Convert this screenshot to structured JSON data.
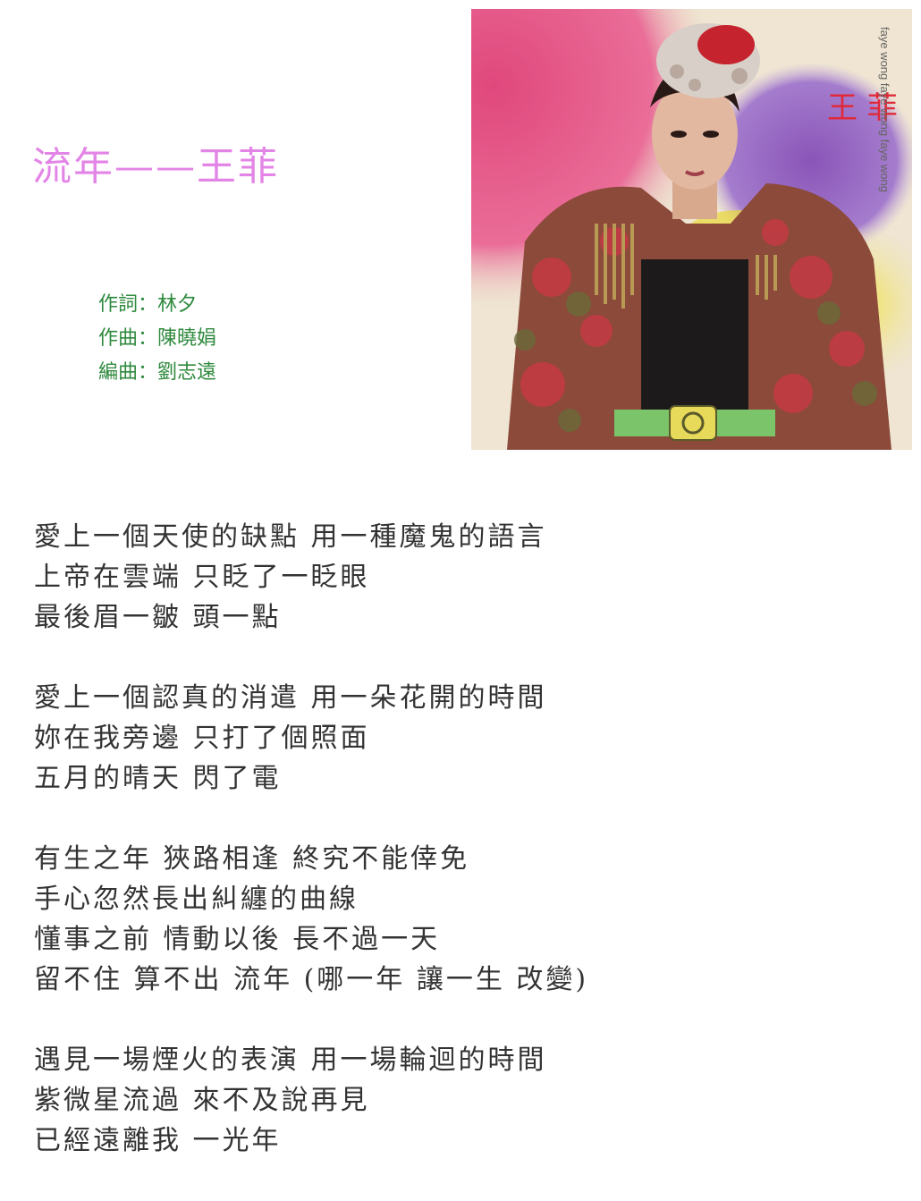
{
  "title": "流年——王菲",
  "credits": [
    "作詞：林夕",
    "作曲：陳曉娟",
    "編曲：劉志遠"
  ],
  "cover": {
    "artist_zh": "王 菲",
    "artist_en": "faye wong faye wong faye wong"
  },
  "stanzas": [
    [
      "愛上一個天使的缺點 用一種魔鬼的語言",
      "上帝在雲端 只眨了一眨眼",
      "最後眉一皺 頭一點"
    ],
    [
      "愛上一個認真的消遣 用一朵花開的時間",
      "妳在我旁邊 只打了個照面",
      "五月的晴天 閃了電"
    ],
    [
      "有生之年 狹路相逢 終究不能倖免",
      "手心忽然長出糾纏的曲線",
      "懂事之前 情動以後 長不過一天",
      "留不住 算不出 流年 (哪一年 讓一生 改變)"
    ],
    [
      "遇見一場煙火的表演 用一場輪迴的時間",
      "紫微星流過 來不及說再見",
      "已經遠離我 一光年"
    ]
  ]
}
